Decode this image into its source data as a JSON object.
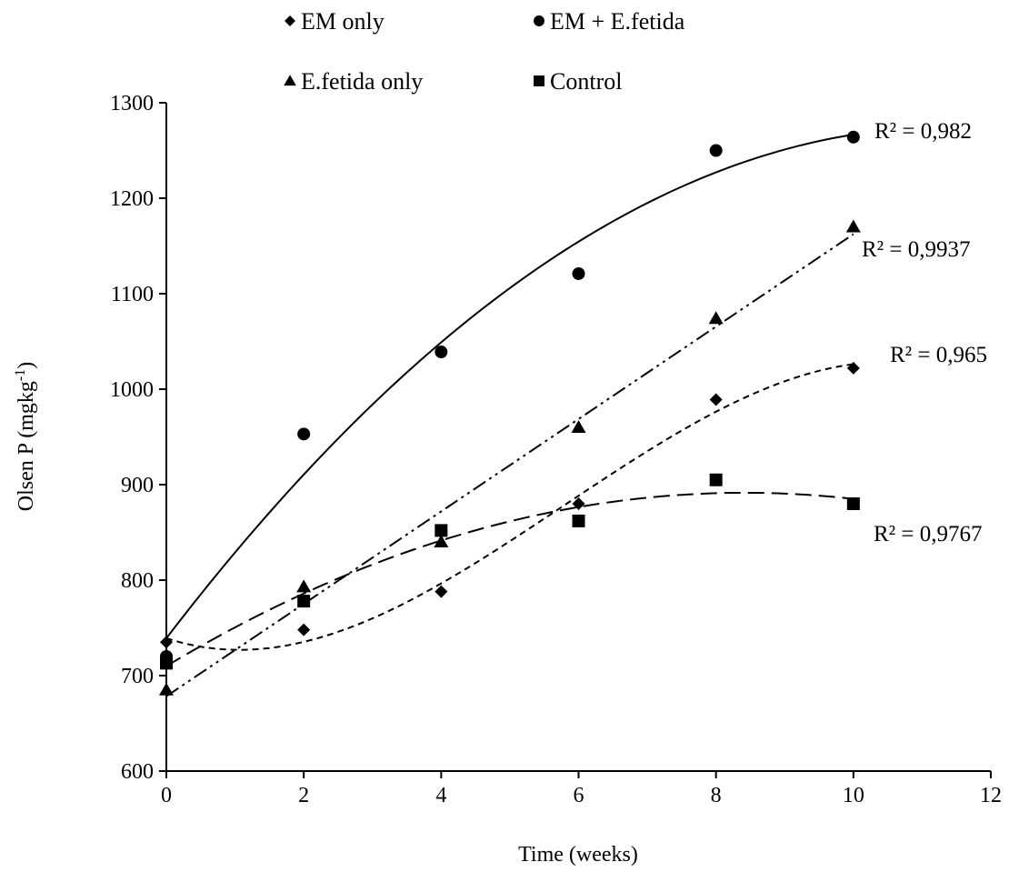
{
  "chart_data": {
    "type": "scatter",
    "xlabel": "Time (weeks)",
    "ylabel_main": "Olsen P (mgkg",
    "ylabel_sup": "-1",
    "ylabel_close": ")",
    "xlim": [
      0,
      12
    ],
    "ylim": [
      600,
      1300
    ],
    "x_ticks": [
      "0",
      "2",
      "4",
      "6",
      "8",
      "10",
      "12"
    ],
    "y_ticks": [
      "600",
      "700",
      "800",
      "900",
      "1000",
      "1100",
      "1200",
      "1300"
    ],
    "grid": false,
    "legend_position": "top",
    "x": [
      0,
      2,
      4,
      6,
      8,
      10
    ],
    "series": [
      {
        "name": "EM only",
        "marker": "diamond",
        "values": [
          735,
          748,
          788,
          880,
          989,
          1022
        ],
        "trendline": "cubic",
        "dash": "short",
        "r2_label": "R² = 0,965"
      },
      {
        "name": "EM + E.fetida",
        "marker": "circle",
        "values": [
          720,
          953,
          1039,
          1121,
          1250,
          1264
        ],
        "trendline": "quadratic",
        "dash": "solid",
        "r2_label": "R² = 0,982"
      },
      {
        "name": "E.fetida only",
        "marker": "triangle",
        "values": [
          685,
          793,
          840,
          960,
          1074,
          1170
        ],
        "trendline": "linear",
        "dash": "dash-dot-dot",
        "r2_label": "R² = 0,9937"
      },
      {
        "name": "Control",
        "marker": "square",
        "values": [
          713,
          778,
          852,
          862,
          905,
          880
        ],
        "trendline": "quadratic",
        "dash": "long",
        "r2_label": "R² = 0,9767"
      }
    ]
  }
}
